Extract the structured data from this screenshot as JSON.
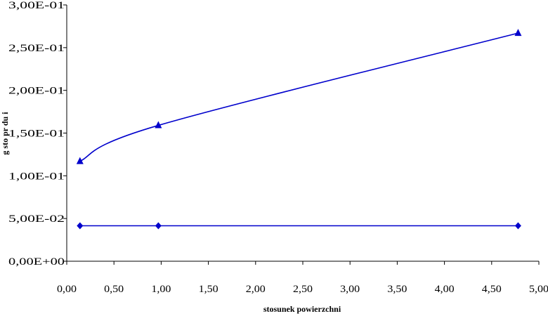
{
  "chart_data": {
    "type": "line",
    "title": "",
    "xlabel": "stosunek powierzchni",
    "ylabel": "g  sto    pr  du  i",
    "xlim": [
      0,
      5
    ],
    "ylim": [
      0,
      0.3
    ],
    "x_ticks": [
      "0,00",
      "0,50",
      "1,00",
      "1,50",
      "2,00",
      "2,50",
      "3,00",
      "3,50",
      "4,00",
      "4,50",
      "5,00"
    ],
    "y_ticks": [
      "0,00E+00",
      "5,00E-02",
      "1,00E-01",
      "1,50E-01",
      "2,00E-01",
      "2,50E-01",
      "3,00E-01"
    ],
    "grid": false,
    "legend": "none",
    "series": [
      {
        "marker": "triangle",
        "color": "#0000cc",
        "smooth": true,
        "points": [
          {
            "x": 0.14,
            "y": 0.117
          },
          {
            "x": 0.97,
            "y": 0.159
          },
          {
            "x": 4.78,
            "y": 0.267
          }
        ]
      },
      {
        "marker": "diamond",
        "color": "#0000cc",
        "smooth": false,
        "points": [
          {
            "x": 0.14,
            "y": 0.0415
          },
          {
            "x": 0.97,
            "y": 0.0415
          },
          {
            "x": 4.78,
            "y": 0.0415
          }
        ]
      }
    ]
  }
}
